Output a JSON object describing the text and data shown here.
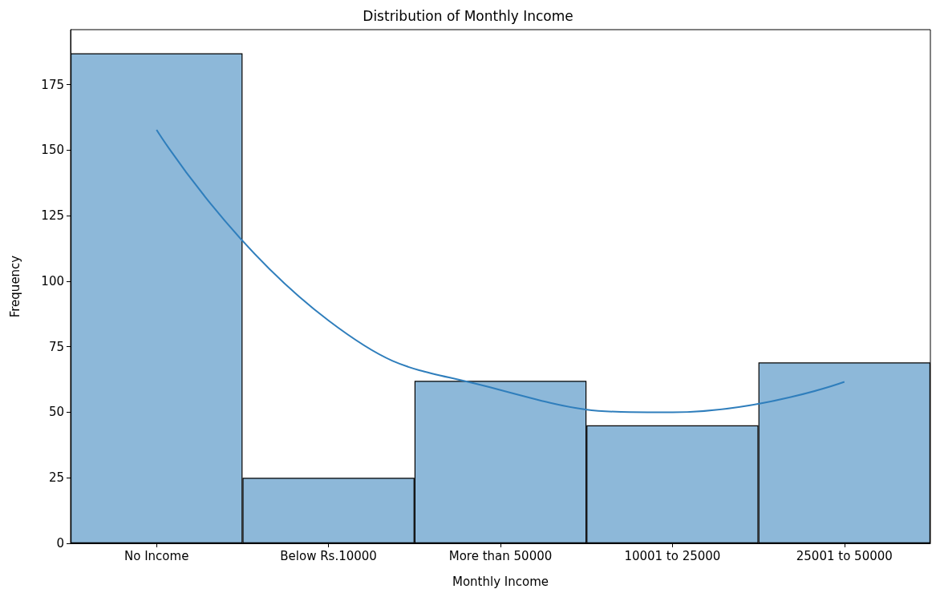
{
  "chart_data": {
    "type": "bar",
    "title": "Distribution of Monthly Income",
    "xlabel": "Monthly Income",
    "ylabel": "Frequency",
    "categories": [
      "No Income",
      "Below Rs.10000",
      "More than 50000",
      "10001 to 25000",
      "25001 to 50000"
    ],
    "series": [
      {
        "color": "#8db8d9",
        "values": [
          187,
          25,
          62,
          45,
          69
        ]
      },
      {
        "type": "line",
        "color": "#2f7ebc",
        "values": [
          157.8,
          85,
          58.5,
          50,
          61.6
        ]
      }
    ],
    "ylim": [
      0,
      196
    ],
    "yticks": [
      0,
      25,
      50,
      75,
      100,
      125,
      150,
      175
    ],
    "grid": false,
    "marker": "none",
    "line_style": "solid"
  }
}
